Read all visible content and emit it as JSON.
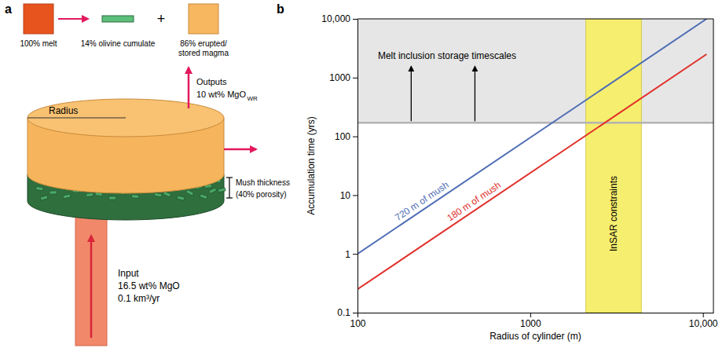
{
  "diagram": {
    "label": "a",
    "melt": "100% melt",
    "cumulate": "14% olivine cumulate",
    "operator": "+",
    "magma": [
      "86% erupted/",
      "stored magma"
    ],
    "radius": "Radius",
    "outputs": {
      "title": "Outputs",
      "value": "10 wt% MgO",
      "subscript": "WR"
    },
    "mush": {
      "title": "Mush thickness",
      "porosity": "(40% porosity)"
    },
    "input": {
      "title": "Input",
      "mgo": "16.5 wt% MgO",
      "flux": "0.1 km³/yr"
    }
  },
  "chart_data": {
    "type": "line",
    "panel_label": "b",
    "x_label": "Radius of cylinder (m)",
    "y_label": "Accumulation time (yrs)",
    "log": true,
    "grid": false,
    "x": [
      100,
      10500
    ],
    "series": [
      {
        "name": "720 m of mush",
        "color": "#4f6db5",
        "values": [
          1.0,
          10000
        ]
      },
      {
        "name": "180 m of mush",
        "color": "#e0302a",
        "values": [
          0.25,
          2500
        ]
      }
    ],
    "xlim": [
      100,
      11500
    ],
    "ylim": [
      0.1,
      10000
    ],
    "xticks": [
      100,
      1000,
      {
        "value": 10000,
        "label": "10,000"
      }
    ],
    "yticks": [
      0.1,
      1,
      10,
      100,
      1000,
      {
        "value": 10000,
        "label": "10,000"
      }
    ],
    "melt_inclusion_min": 170,
    "insar_range": [
      2100,
      4400
    ],
    "annotations": [
      "Melt inclusion storage timescales",
      "InSAR constraints"
    ]
  }
}
